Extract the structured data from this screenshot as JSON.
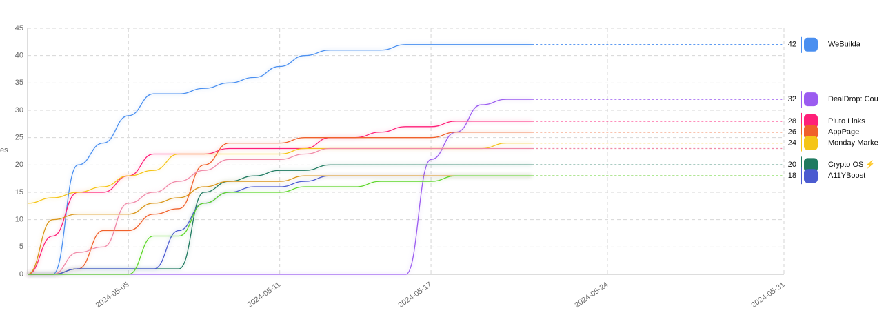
{
  "chart_data": {
    "type": "line",
    "y_label": "es",
    "x": [
      "2024-05-01",
      "2024-05-02",
      "2024-05-03",
      "2024-05-04",
      "2024-05-05",
      "2024-05-06",
      "2024-05-07",
      "2024-05-08",
      "2024-05-09",
      "2024-05-10",
      "2024-05-11",
      "2024-05-12",
      "2024-05-13",
      "2024-05-14",
      "2024-05-15",
      "2024-05-16",
      "2024-05-17",
      "2024-05-18",
      "2024-05-19",
      "2024-05-20",
      "2024-05-21"
    ],
    "xlim": [
      "2024-05-01",
      "2024-05-31"
    ],
    "xticks": [
      "2024-05-05",
      "2024-05-11",
      "2024-05-17",
      "2024-05-24",
      "2024-05-31"
    ],
    "ylim": [
      0,
      45
    ],
    "yticks": [
      0,
      5,
      10,
      15,
      20,
      25,
      30,
      35,
      40,
      45
    ],
    "grid": true,
    "series": [
      {
        "name": "WeBuilda",
        "color": "#4a8ff0",
        "values": [
          0,
          0,
          20,
          24,
          29,
          33,
          33,
          34,
          35,
          36,
          38,
          40,
          41,
          41,
          41,
          42,
          42,
          42,
          42,
          42,
          42
        ]
      },
      {
        "name": "DealDrop: Cou",
        "color": "#9b5cf0",
        "values": [
          0,
          0,
          0,
          0,
          0,
          0,
          0,
          0,
          0,
          0,
          0,
          0,
          0,
          0,
          0,
          0,
          21,
          26,
          31,
          32,
          32
        ]
      },
      {
        "name": "Pluto Links",
        "color": "#ff1f78",
        "values": [
          0,
          7,
          15,
          15,
          18,
          22,
          22,
          22,
          23,
          23,
          23,
          23,
          25,
          25,
          26,
          27,
          27,
          28,
          28,
          28,
          28
        ]
      },
      {
        "name": "AppPage",
        "color": "#f0602a",
        "values": [
          0,
          0,
          1,
          8,
          8,
          11,
          12,
          20,
          24,
          24,
          24,
          25,
          25,
          25,
          25,
          25,
          25,
          26,
          26,
          26,
          26
        ]
      },
      {
        "name": "Monday Marke",
        "color": "#f5c518",
        "values": [
          13,
          14,
          15,
          16,
          18,
          19,
          22,
          22,
          22,
          22,
          22,
          23,
          23,
          23,
          23,
          23,
          23,
          23,
          23,
          24,
          24
        ]
      },
      {
        "name": "Crypto OS ⚡",
        "color": "#1f7a60",
        "values": [
          0,
          0,
          1,
          1,
          1,
          1,
          1,
          15,
          17,
          18,
          19,
          19,
          20,
          20,
          20,
          20,
          20,
          20,
          20,
          20,
          20
        ]
      },
      {
        "name": "A11YBoost",
        "color": "#4b5bd0",
        "values": [
          0,
          0,
          1,
          1,
          1,
          1,
          8,
          13,
          15,
          16,
          16,
          17,
          18,
          18,
          18,
          18,
          18,
          18,
          18,
          18,
          18
        ]
      },
      {
        "color": "#d9961a",
        "values": [
          0,
          10,
          11,
          11,
          11,
          13,
          14,
          16,
          17,
          17,
          17,
          18,
          18,
          18,
          18,
          18,
          18,
          18,
          18,
          18,
          18
        ]
      },
      {
        "color": "#f08aa8",
        "values": [
          0,
          0,
          4,
          5,
          13,
          15,
          17,
          19,
          21,
          21,
          21,
          22,
          23,
          23,
          23,
          23,
          23,
          23,
          23,
          23,
          23
        ]
      },
      {
        "color": "#5ed62a",
        "values": [
          0,
          0,
          0,
          0,
          0,
          7,
          7,
          13,
          15,
          15,
          15,
          16,
          16,
          16,
          17,
          17,
          17,
          18,
          18,
          18,
          18
        ]
      }
    ]
  }
}
